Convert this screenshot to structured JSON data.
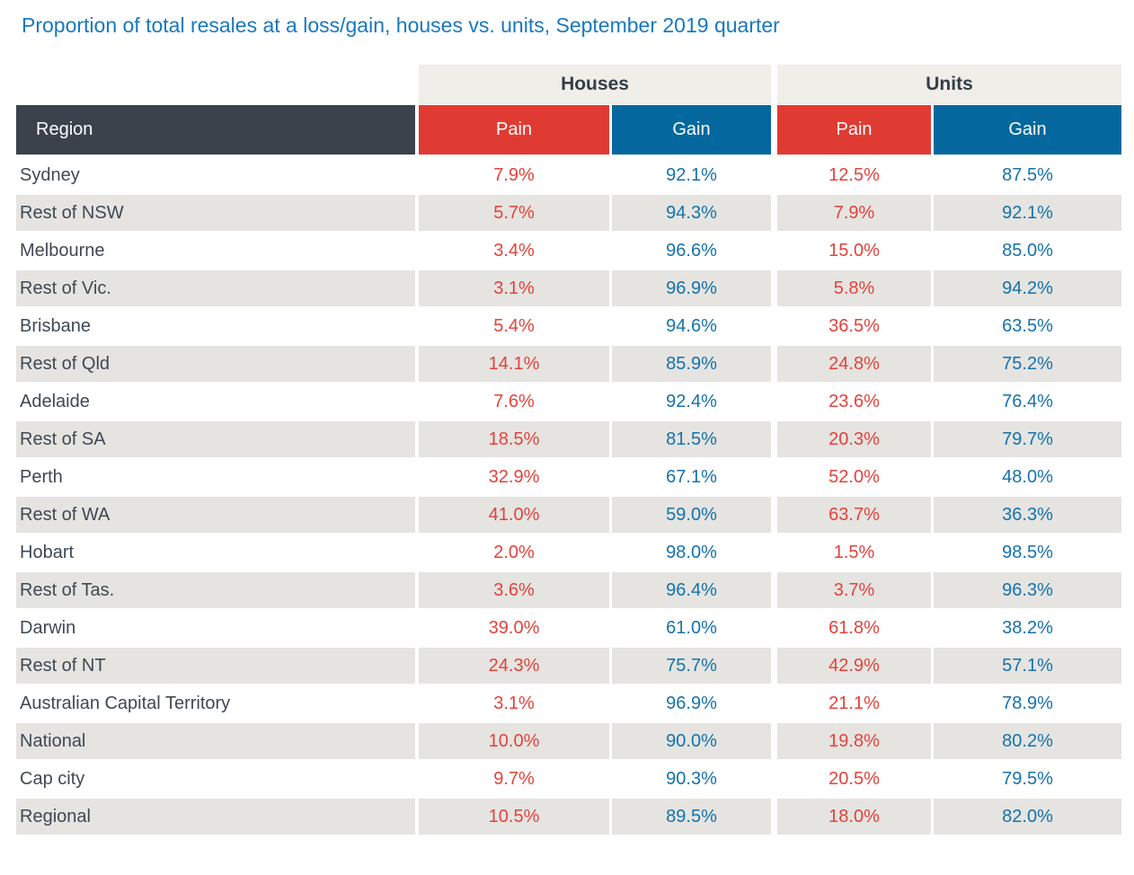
{
  "title": "Proportion of total resales at a loss/gain, houses vs. units, September 2019 quarter",
  "colors": {
    "title_blue": "#1779BE",
    "group_header_bg": "#F0EEE9",
    "group_header_text": "#333E48",
    "region_header_bg": "#3B424C",
    "pain_header_bg": "#E03B33",
    "gain_header_bg": "#04689E",
    "header_text": "#FFFFFF",
    "row_stripe_bg": "#E5E4E1",
    "region_text": "#3F4852",
    "pain_value_text": "#E4423B",
    "gain_value_text": "#1572AC"
  },
  "table": {
    "region_header": "Region",
    "groups": [
      {
        "label": "Houses",
        "columns": [
          "Pain",
          "Gain"
        ]
      },
      {
        "label": "Units",
        "columns": [
          "Pain",
          "Gain"
        ]
      }
    ],
    "rows": [
      {
        "region": "Sydney",
        "houses_pain": "7.9%",
        "houses_gain": "92.1%",
        "units_pain": "12.5%",
        "units_gain": "87.5%"
      },
      {
        "region": "Rest of NSW",
        "houses_pain": "5.7%",
        "houses_gain": "94.3%",
        "units_pain": "7.9%",
        "units_gain": "92.1%"
      },
      {
        "region": "Melbourne",
        "houses_pain": "3.4%",
        "houses_gain": "96.6%",
        "units_pain": "15.0%",
        "units_gain": "85.0%"
      },
      {
        "region": "Rest of Vic.",
        "houses_pain": "3.1%",
        "houses_gain": "96.9%",
        "units_pain": "5.8%",
        "units_gain": "94.2%"
      },
      {
        "region": "Brisbane",
        "houses_pain": "5.4%",
        "houses_gain": "94.6%",
        "units_pain": "36.5%",
        "units_gain": "63.5%"
      },
      {
        "region": "Rest of Qld",
        "houses_pain": "14.1%",
        "houses_gain": "85.9%",
        "units_pain": "24.8%",
        "units_gain": "75.2%"
      },
      {
        "region": "Adelaide",
        "houses_pain": "7.6%",
        "houses_gain": "92.4%",
        "units_pain": "23.6%",
        "units_gain": "76.4%"
      },
      {
        "region": "Rest of SA",
        "houses_pain": "18.5%",
        "houses_gain": "81.5%",
        "units_pain": "20.3%",
        "units_gain": "79.7%"
      },
      {
        "region": "Perth",
        "houses_pain": "32.9%",
        "houses_gain": "67.1%",
        "units_pain": "52.0%",
        "units_gain": "48.0%"
      },
      {
        "region": "Rest of WA",
        "houses_pain": "41.0%",
        "houses_gain": "59.0%",
        "units_pain": "63.7%",
        "units_gain": "36.3%"
      },
      {
        "region": "Hobart",
        "houses_pain": "2.0%",
        "houses_gain": "98.0%",
        "units_pain": "1.5%",
        "units_gain": "98.5%"
      },
      {
        "region": "Rest of Tas.",
        "houses_pain": "3.6%",
        "houses_gain": "96.4%",
        "units_pain": "3.7%",
        "units_gain": "96.3%"
      },
      {
        "region": "Darwin",
        "houses_pain": "39.0%",
        "houses_gain": "61.0%",
        "units_pain": "61.8%",
        "units_gain": "38.2%"
      },
      {
        "region": "Rest of NT",
        "houses_pain": "24.3%",
        "houses_gain": "75.7%",
        "units_pain": "42.9%",
        "units_gain": "57.1%"
      },
      {
        "region": "Australian Capital Territory",
        "houses_pain": "3.1%",
        "houses_gain": "96.9%",
        "units_pain": "21.1%",
        "units_gain": "78.9%"
      },
      {
        "region": "National",
        "houses_pain": "10.0%",
        "houses_gain": "90.0%",
        "units_pain": "19.8%",
        "units_gain": "80.2%"
      },
      {
        "region": "Cap city",
        "houses_pain": "9.7%",
        "houses_gain": "90.3%",
        "units_pain": "20.5%",
        "units_gain": "79.5%"
      },
      {
        "region": "Regional",
        "houses_pain": "10.5%",
        "houses_gain": "89.5%",
        "units_pain": "18.0%",
        "units_gain": "82.0%"
      }
    ]
  },
  "chart_data": {
    "type": "table",
    "title": "Proportion of total resales at a loss/gain, houses vs. units, September 2019 quarter",
    "column_groups": [
      "Houses",
      "Units"
    ],
    "columns": [
      "Region",
      "Houses Pain",
      "Houses Gain",
      "Units Pain",
      "Units Gain"
    ],
    "unit": "%",
    "rows": [
      [
        "Sydney",
        7.9,
        92.1,
        12.5,
        87.5
      ],
      [
        "Rest of NSW",
        5.7,
        94.3,
        7.9,
        92.1
      ],
      [
        "Melbourne",
        3.4,
        96.6,
        15.0,
        85.0
      ],
      [
        "Rest of Vic.",
        3.1,
        96.9,
        5.8,
        94.2
      ],
      [
        "Brisbane",
        5.4,
        94.6,
        36.5,
        63.5
      ],
      [
        "Rest of Qld",
        14.1,
        85.9,
        24.8,
        75.2
      ],
      [
        "Adelaide",
        7.6,
        92.4,
        23.6,
        76.4
      ],
      [
        "Rest of SA",
        18.5,
        81.5,
        20.3,
        79.7
      ],
      [
        "Perth",
        32.9,
        67.1,
        52.0,
        48.0
      ],
      [
        "Rest of WA",
        41.0,
        59.0,
        63.7,
        36.3
      ],
      [
        "Hobart",
        2.0,
        98.0,
        1.5,
        98.5
      ],
      [
        "Rest of Tas.",
        3.6,
        96.4,
        3.7,
        96.3
      ],
      [
        "Darwin",
        39.0,
        61.0,
        61.8,
        38.2
      ],
      [
        "Rest of NT",
        24.3,
        75.7,
        42.9,
        57.1
      ],
      [
        "Australian Capital Territory",
        3.1,
        96.9,
        21.1,
        78.9
      ],
      [
        "National",
        10.0,
        90.0,
        19.8,
        80.2
      ],
      [
        "Cap city",
        9.7,
        90.3,
        20.5,
        79.5
      ],
      [
        "Regional",
        10.5,
        89.5,
        18.0,
        82.0
      ]
    ]
  }
}
